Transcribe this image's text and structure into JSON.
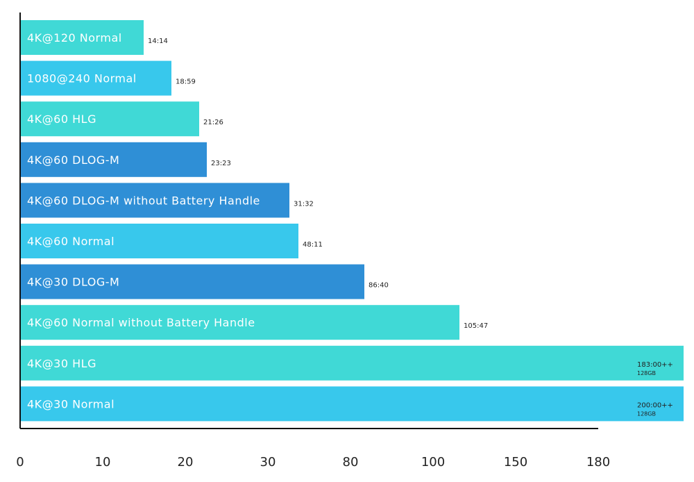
{
  "chart_data": {
    "type": "bar",
    "orientation": "horizontal",
    "title": "",
    "xlabel": "",
    "ylabel": "",
    "x_ticks": [
      "0",
      "10",
      "20",
      "30",
      "80",
      "100",
      "150",
      "180"
    ],
    "grid": false,
    "legend": "none",
    "bars": [
      {
        "label": "4K@120 Normal",
        "value": 14.23,
        "display": "14:14",
        "note": "",
        "color": "#40d9d6"
      },
      {
        "label": "1080@240 Normal",
        "value": 18.98,
        "display": "18:59",
        "note": "",
        "color": "#38c8ec"
      },
      {
        "label": "4K@60 HLG",
        "value": 21.43,
        "display": "21:26",
        "note": "",
        "color": "#40d9d6"
      },
      {
        "label": "4K@60 DLOG-M",
        "value": 23.38,
        "display": "23:23",
        "note": "",
        "color": "#2f8fd6"
      },
      {
        "label": "4K@60 DLOG-M without Battery Handle",
        "value": 31.53,
        "display": "31:32",
        "note": "",
        "color": "#2f8fd6"
      },
      {
        "label": "4K@60 Normal",
        "value": 48.18,
        "display": "48:11",
        "note": "",
        "color": "#38c8ec"
      },
      {
        "label": "4K@30 DLOG-M",
        "value": 86.67,
        "display": "86:40",
        "note": "",
        "color": "#2f8fd6"
      },
      {
        "label": "4K@60 Normal without Battery Handle",
        "value": 105.78,
        "display": "105:47",
        "note": "",
        "color": "#40d9d6"
      },
      {
        "label": "4K@30 HLG",
        "value": 183,
        "display": "183:00++",
        "note": "128GB",
        "color": "#40d9d6"
      },
      {
        "label": "4K@30 Normal",
        "value": 200,
        "display": "200:00++",
        "note": "128GB",
        "color": "#38c8ec"
      }
    ]
  }
}
